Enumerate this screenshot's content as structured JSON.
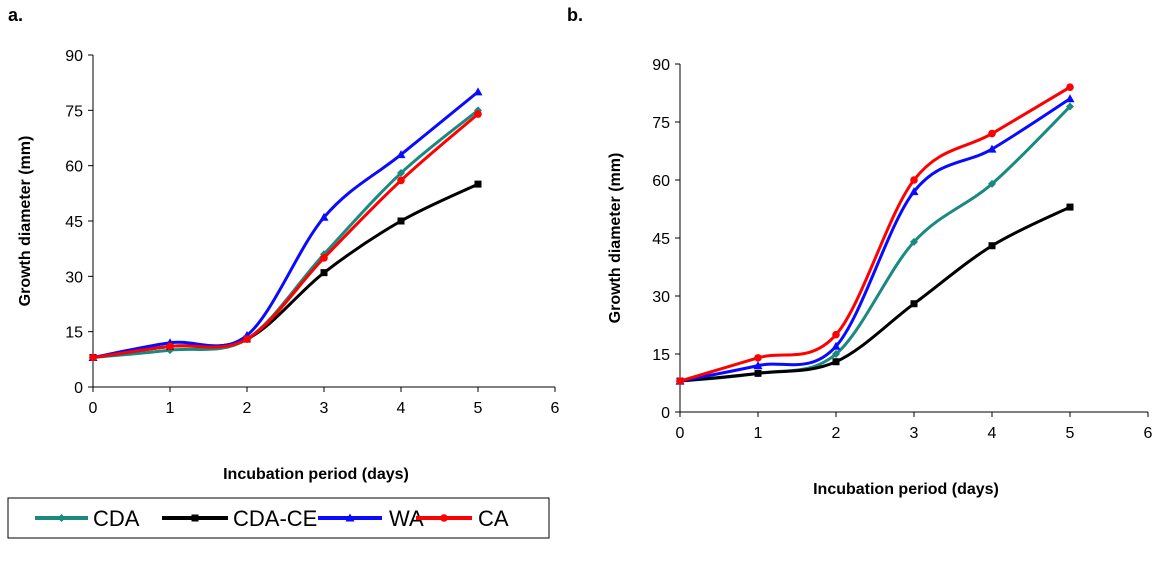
{
  "colors": {
    "CDA": "#1a8a80",
    "CDA-CE": "#000000",
    "WA": "#0a0aff",
    "CA": "#ff0000"
  },
  "chart_data": [
    {
      "panel": "a.",
      "type": "line",
      "xlabel": "Incubation period (days)",
      "ylabel": "Growth diameter (mm)",
      "xlim": [
        0,
        6
      ],
      "ylim": [
        0,
        90
      ],
      "xticks": [
        0,
        1,
        2,
        3,
        4,
        5,
        6
      ],
      "yticks": [
        0,
        15,
        30,
        45,
        60,
        75,
        90
      ],
      "x": [
        0,
        1,
        2,
        3,
        4,
        5
      ],
      "series": [
        {
          "name": "CDA",
          "marker": "diamond",
          "values": [
            8,
            10,
            13,
            36,
            58,
            75
          ]
        },
        {
          "name": "CDA-CE",
          "marker": "square",
          "values": [
            8,
            11,
            13,
            31,
            45,
            55
          ]
        },
        {
          "name": "WA",
          "marker": "triangle",
          "values": [
            8,
            12,
            14,
            46,
            63,
            80
          ]
        },
        {
          "name": "CA",
          "marker": "circle",
          "values": [
            8,
            11,
            13,
            35,
            56,
            74
          ]
        }
      ]
    },
    {
      "panel": "b.",
      "type": "line",
      "xlabel": "Incubation period (days)",
      "ylabel": "Growth diameter (mm)",
      "xlim": [
        0,
        6
      ],
      "ylim": [
        0,
        90
      ],
      "xticks": [
        0,
        1,
        2,
        3,
        4,
        5,
        6
      ],
      "yticks": [
        0,
        15,
        30,
        45,
        60,
        75,
        90
      ],
      "x": [
        0,
        1,
        2,
        3,
        4,
        5
      ],
      "series": [
        {
          "name": "CDA",
          "marker": "diamond",
          "values": [
            8,
            10,
            15,
            44,
            59,
            79
          ]
        },
        {
          "name": "CDA-CE",
          "marker": "square",
          "values": [
            8,
            10,
            13,
            28,
            43,
            53
          ]
        },
        {
          "name": "WA",
          "marker": "triangle",
          "values": [
            8,
            12,
            17,
            57,
            68,
            81
          ]
        },
        {
          "name": "CA",
          "marker": "circle",
          "values": [
            8,
            14,
            20,
            60,
            72,
            84
          ]
        }
      ]
    }
  ],
  "legend": {
    "position": "bottom-left",
    "entries": [
      "CDA",
      "CDA-CE",
      "WA",
      "CA"
    ]
  }
}
